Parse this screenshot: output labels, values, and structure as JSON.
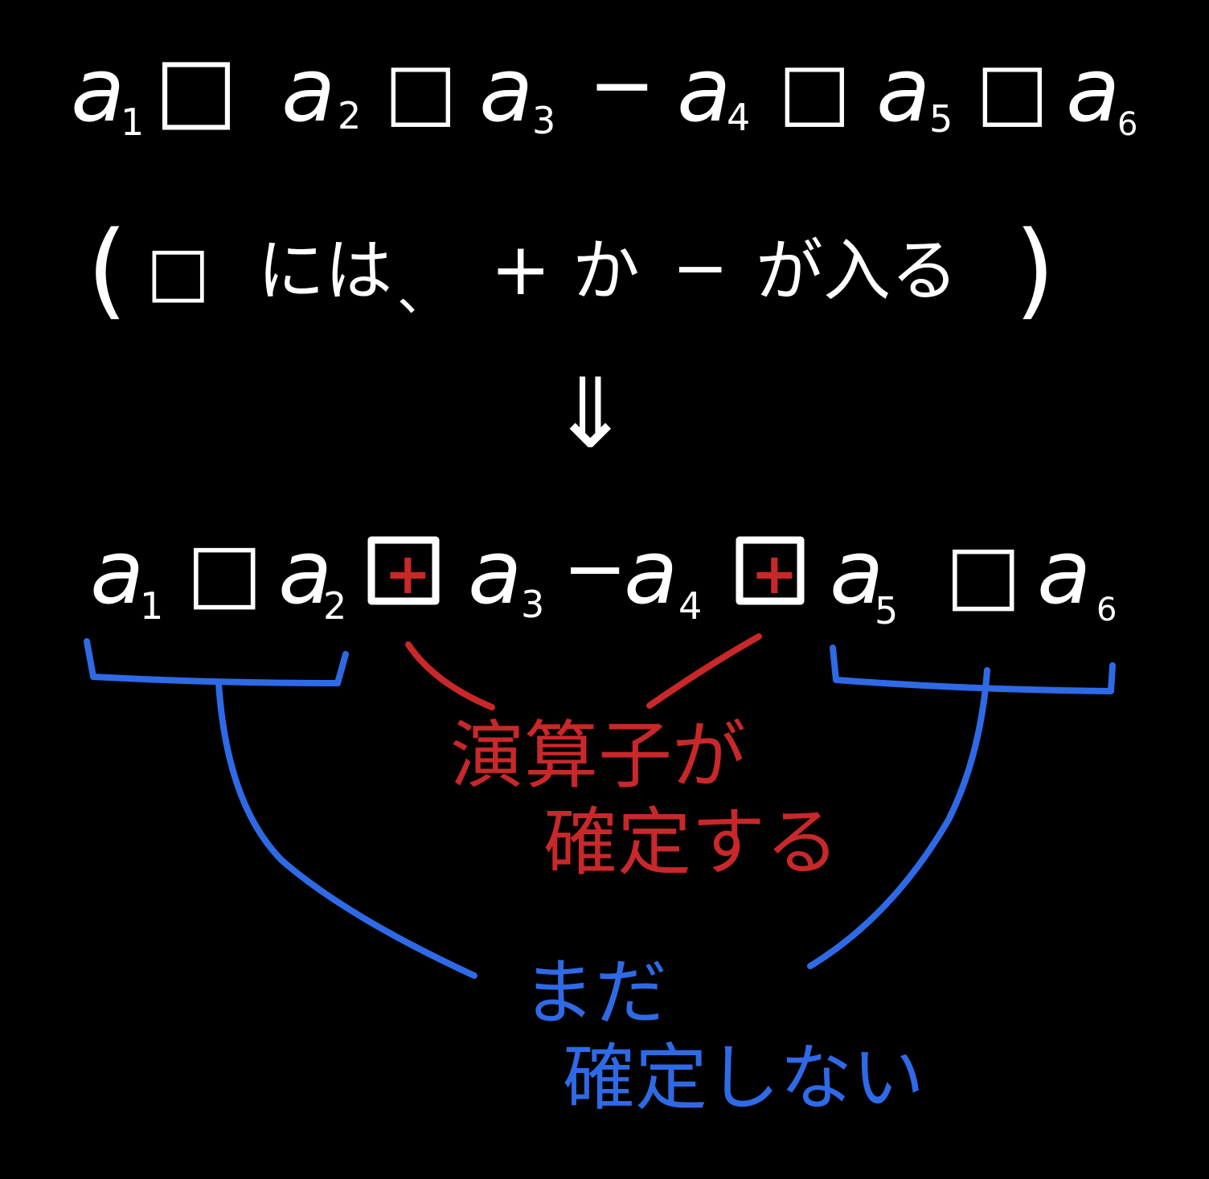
{
  "colors": {
    "background": "#000000",
    "white": "#ffffff",
    "red": "#c8282a",
    "blue": "#2f6ae6"
  },
  "line1": {
    "terms": [
      {
        "var": "a",
        "sub": "1"
      },
      {
        "var": "a",
        "sub": "2"
      },
      {
        "var": "a",
        "sub": "3"
      },
      {
        "var": "a",
        "sub": "4"
      },
      {
        "var": "a",
        "sub": "5"
      },
      {
        "var": "a",
        "sub": "6"
      }
    ],
    "operators": [
      "□",
      "□",
      "−",
      "□",
      "□"
    ]
  },
  "note": {
    "open_paren": "(",
    "box": "□",
    "text1": "には",
    "comma": "、",
    "plus": "+",
    "text2": "か",
    "minus": "−",
    "text3": "が入る",
    "close_paren": ")"
  },
  "arrow": "⇓",
  "line2": {
    "terms": [
      {
        "var": "a",
        "sub": "1"
      },
      {
        "var": "a",
        "sub": "2"
      },
      {
        "var": "a",
        "sub": "3"
      },
      {
        "var": "a",
        "sub": "4"
      },
      {
        "var": "a",
        "sub": "5"
      },
      {
        "var": "a",
        "sub": "6"
      }
    ],
    "operators": [
      "□",
      "⊞",
      "−",
      "⊞",
      "□"
    ],
    "fixed_sign": "+"
  },
  "red_label": {
    "line1": "演算子が",
    "line2": "確定する"
  },
  "blue_label": {
    "line1": "まだ",
    "line2": "確定しない"
  }
}
